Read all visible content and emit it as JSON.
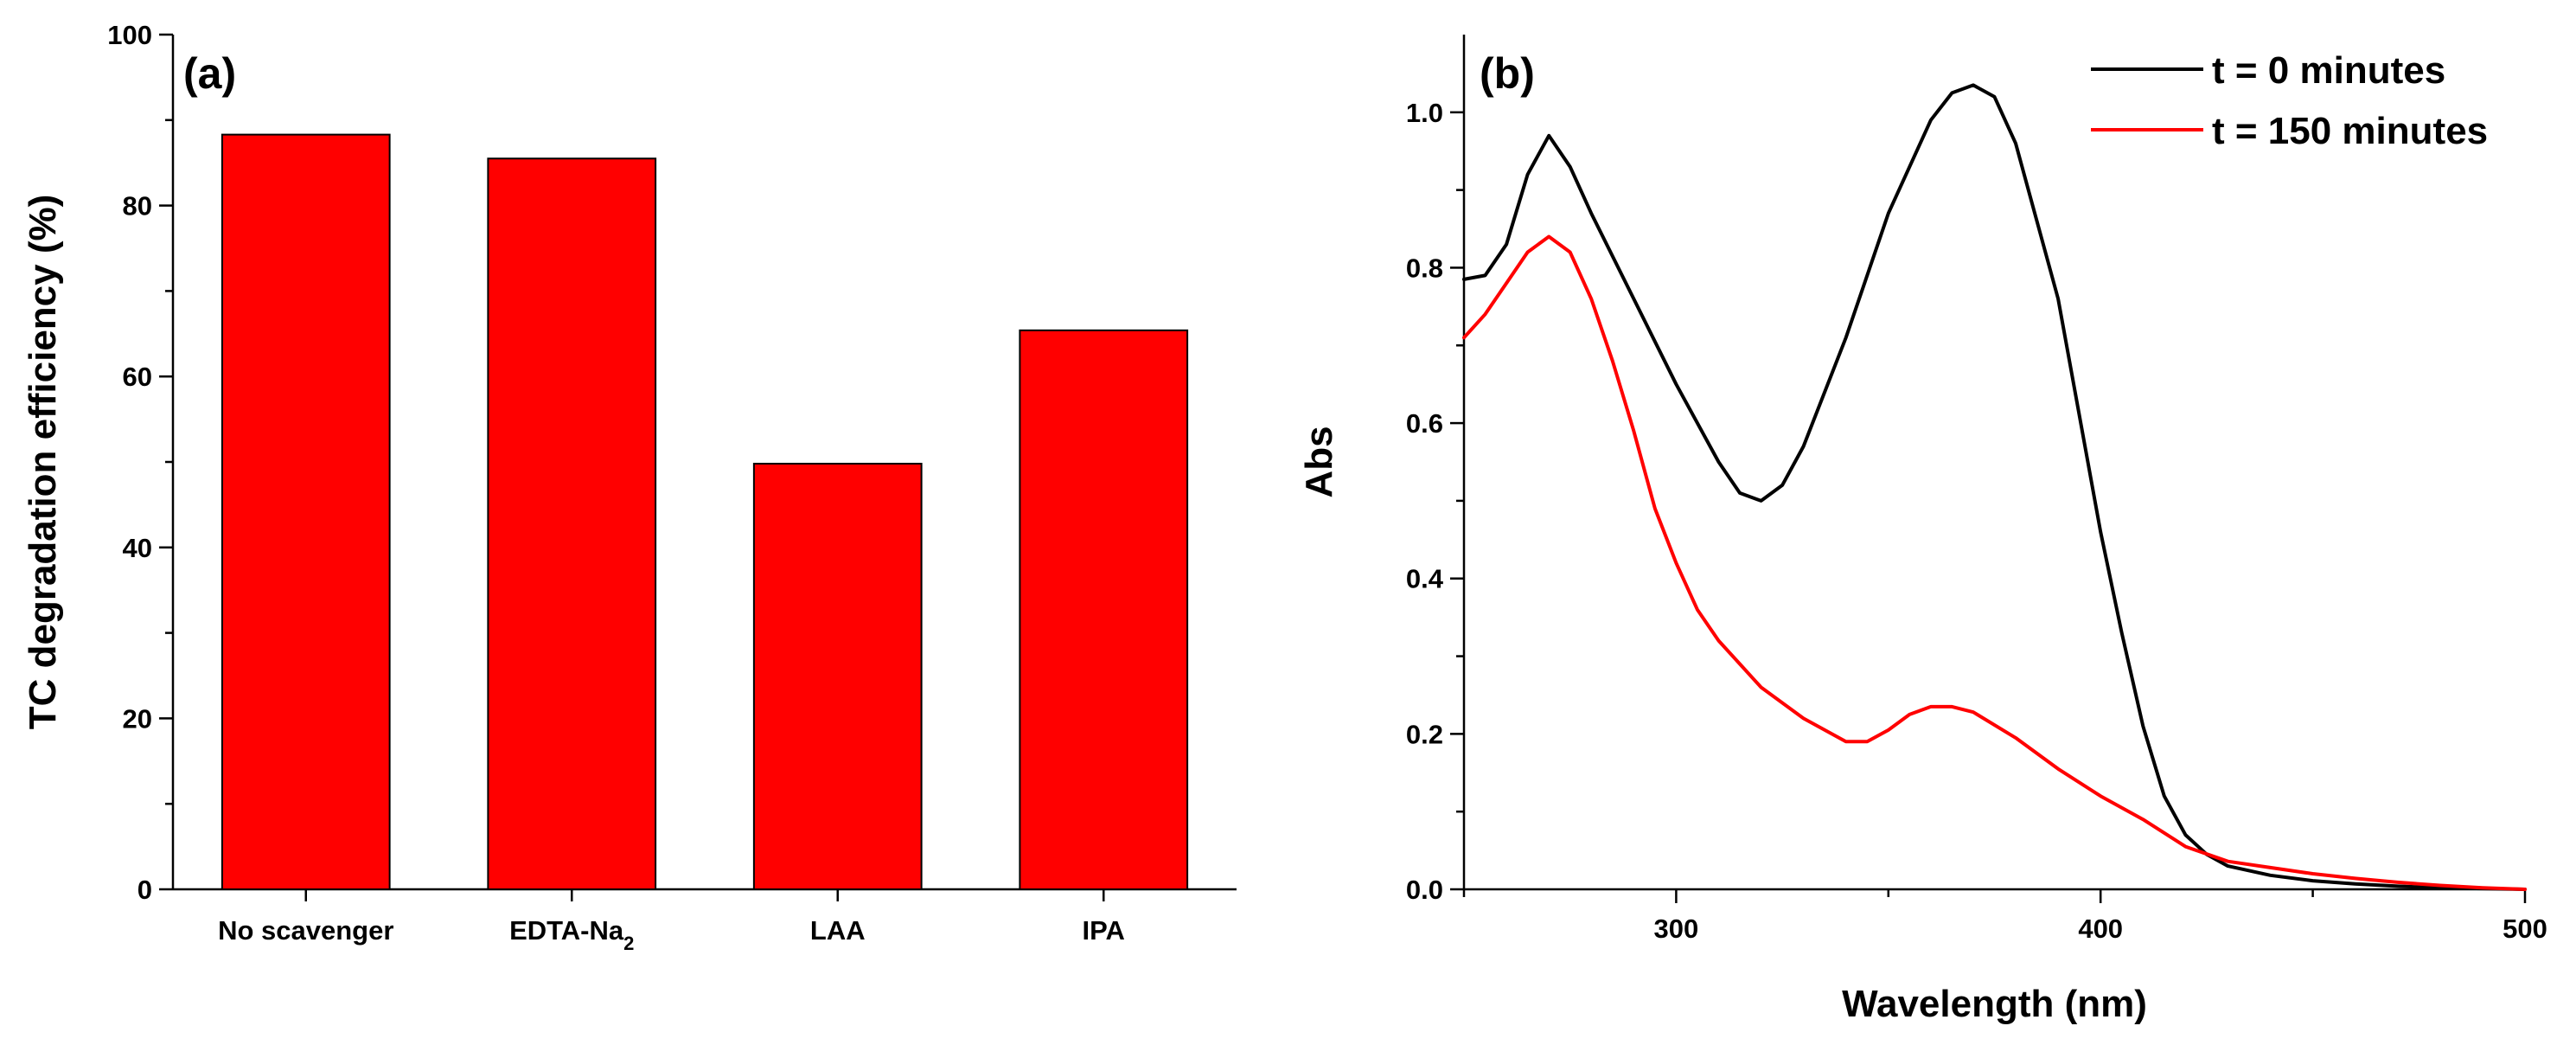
{
  "chart_data": [
    {
      "type": "bar",
      "panel_label": "(a)",
      "categories": [
        "No scavenger",
        "EDTA-Na",
        "LAA",
        "IPA"
      ],
      "category_subscripts": [
        "",
        "2",
        "",
        ""
      ],
      "values": [
        88.3,
        85.5,
        49.8,
        65.4
      ],
      "bar_color": "#ff0000",
      "title": "",
      "xlabel": "",
      "ylabel": "TC degradation efficiency (%)",
      "ylim": [
        0,
        100
      ],
      "yticks": [
        0,
        20,
        40,
        60,
        80,
        100
      ],
      "grid": false
    },
    {
      "type": "line",
      "panel_label": "(b)",
      "title": "",
      "xlabel": "Wavelength (nm)",
      "ylabel": "Abs",
      "xlim": [
        250,
        500
      ],
      "ylim": [
        0,
        1.1
      ],
      "xticks": [
        300,
        400,
        500
      ],
      "yticks": [
        0.0,
        0.2,
        0.4,
        0.6,
        0.8,
        1.0
      ],
      "ytick_labels": [
        "0.0",
        "0.2",
        "0.4",
        "0.6",
        "0.8",
        "1.0"
      ],
      "grid": false,
      "legend_position": "top-right",
      "series": [
        {
          "name": "t = 0 minutes",
          "color": "#000000",
          "x": [
            250,
            255,
            260,
            265,
            270,
            275,
            280,
            290,
            300,
            310,
            315,
            320,
            325,
            330,
            340,
            350,
            360,
            365,
            370,
            375,
            380,
            390,
            400,
            405,
            410,
            415,
            420,
            425,
            430,
            440,
            450,
            460,
            470,
            480,
            490,
            500
          ],
          "y": [
            0.785,
            0.79,
            0.83,
            0.92,
            0.97,
            0.93,
            0.87,
            0.76,
            0.65,
            0.55,
            0.51,
            0.5,
            0.52,
            0.57,
            0.71,
            0.87,
            0.99,
            1.025,
            1.035,
            1.02,
            0.96,
            0.76,
            0.46,
            0.33,
            0.21,
            0.12,
            0.07,
            0.045,
            0.03,
            0.018,
            0.011,
            0.007,
            0.004,
            0.002,
            0.001,
            0.0
          ]
        },
        {
          "name": "t = 150 minutes",
          "color": "#ff0000",
          "x": [
            250,
            255,
            260,
            265,
            270,
            275,
            280,
            285,
            290,
            295,
            300,
            305,
            310,
            315,
            320,
            330,
            340,
            345,
            350,
            355,
            360,
            365,
            370,
            380,
            390,
            400,
            410,
            420,
            430,
            440,
            450,
            460,
            470,
            480,
            490,
            500
          ],
          "y": [
            0.71,
            0.74,
            0.78,
            0.82,
            0.84,
            0.82,
            0.76,
            0.68,
            0.59,
            0.49,
            0.42,
            0.36,
            0.32,
            0.29,
            0.26,
            0.22,
            0.19,
            0.19,
            0.205,
            0.225,
            0.235,
            0.235,
            0.228,
            0.195,
            0.155,
            0.12,
            0.09,
            0.055,
            0.036,
            0.028,
            0.02,
            0.014,
            0.009,
            0.005,
            0.002,
            0.0
          ]
        }
      ]
    }
  ]
}
